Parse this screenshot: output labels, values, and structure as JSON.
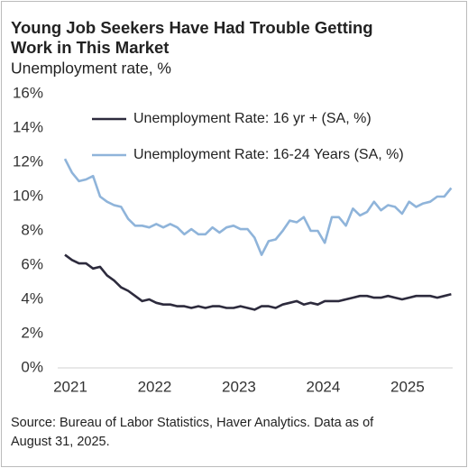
{
  "chart_data": {
    "type": "line",
    "title": [
      "Young Job Seekers Have Had Trouble Getting",
      "Work in This Market"
    ],
    "subtitle": "Unemployment  rate, %",
    "source": [
      "Source: Bureau of Labor Statistics, Haver Analytics. Data as of",
      "August 31, 2025."
    ],
    "x": [
      2021,
      2021.0833,
      2021.1667,
      2021.25,
      2021.3333,
      2021.4167,
      2021.5,
      2021.5833,
      2021.6667,
      2021.75,
      2021.8333,
      2021.9167,
      2022,
      2022.0833,
      2022.1667,
      2022.25,
      2022.3333,
      2022.4167,
      2022.5,
      2022.5833,
      2022.6667,
      2022.75,
      2022.8333,
      2022.9167,
      2023,
      2023.0833,
      2023.1667,
      2023.25,
      2023.3333,
      2023.4167,
      2023.5,
      2023.5833,
      2023.6667,
      2023.75,
      2023.8333,
      2023.9167,
      2024,
      2024.0833,
      2024.1667,
      2024.25,
      2024.3333,
      2024.4167,
      2024.5,
      2024.5833,
      2024.6667,
      2024.75,
      2024.8333,
      2024.9167,
      2025,
      2025.0833,
      2025.1667,
      2025.25,
      2025.3333,
      2025.4167,
      2025.5,
      2025.5833
    ],
    "series": [
      {
        "name": "Unemployment Rate: 16 yr + (SA, %)",
        "color": "#2d2b3d",
        "values": [
          6.6,
          6.3,
          6.1,
          6.1,
          5.8,
          5.9,
          5.4,
          5.1,
          4.7,
          4.5,
          4.2,
          3.9,
          4.0,
          3.8,
          3.7,
          3.7,
          3.6,
          3.6,
          3.5,
          3.6,
          3.5,
          3.6,
          3.6,
          3.5,
          3.5,
          3.6,
          3.5,
          3.4,
          3.6,
          3.6,
          3.5,
          3.7,
          3.8,
          3.9,
          3.7,
          3.8,
          3.7,
          3.9,
          3.9,
          3.9,
          4.0,
          4.1,
          4.2,
          4.2,
          4.1,
          4.1,
          4.2,
          4.1,
          4.0,
          4.1,
          4.2,
          4.2,
          4.2,
          4.1,
          4.2,
          4.3
        ]
      },
      {
        "name": "Unemployment Rate: 16-24 Years (SA, %)",
        "color": "#8fb4da",
        "values": [
          12.2,
          11.4,
          10.9,
          11.0,
          11.2,
          10.0,
          9.7,
          9.5,
          9.4,
          8.7,
          8.3,
          8.3,
          8.2,
          8.4,
          8.2,
          8.4,
          8.2,
          7.8,
          8.1,
          7.8,
          7.8,
          8.2,
          7.9,
          8.2,
          8.3,
          8.1,
          8.1,
          7.6,
          6.6,
          7.4,
          7.5,
          8.0,
          8.6,
          8.5,
          8.8,
          8.0,
          8.0,
          7.3,
          8.8,
          8.8,
          8.3,
          9.3,
          8.9,
          9.1,
          9.7,
          9.2,
          9.5,
          9.4,
          9.0,
          9.7,
          9.4,
          9.6,
          9.7,
          10.0,
          10.0,
          10.5
        ]
      }
    ],
    "xlim": [
      2021,
      2025.6
    ],
    "xticks": [
      2021,
      2022,
      2023,
      2024,
      2025
    ],
    "ylim": [
      0,
      16
    ],
    "yticks": [
      {
        "value": 0,
        "label": "0%"
      },
      {
        "value": 2,
        "label": "2%"
      },
      {
        "value": 4,
        "label": "4%"
      },
      {
        "value": 6,
        "label": "6%"
      },
      {
        "value": 8,
        "label": "8%"
      },
      {
        "value": 10,
        "label": "10%"
      },
      {
        "value": 12,
        "label": "12%"
      },
      {
        "value": 14,
        "label": "14%"
      },
      {
        "value": 16,
        "label": "16%"
      }
    ]
  }
}
